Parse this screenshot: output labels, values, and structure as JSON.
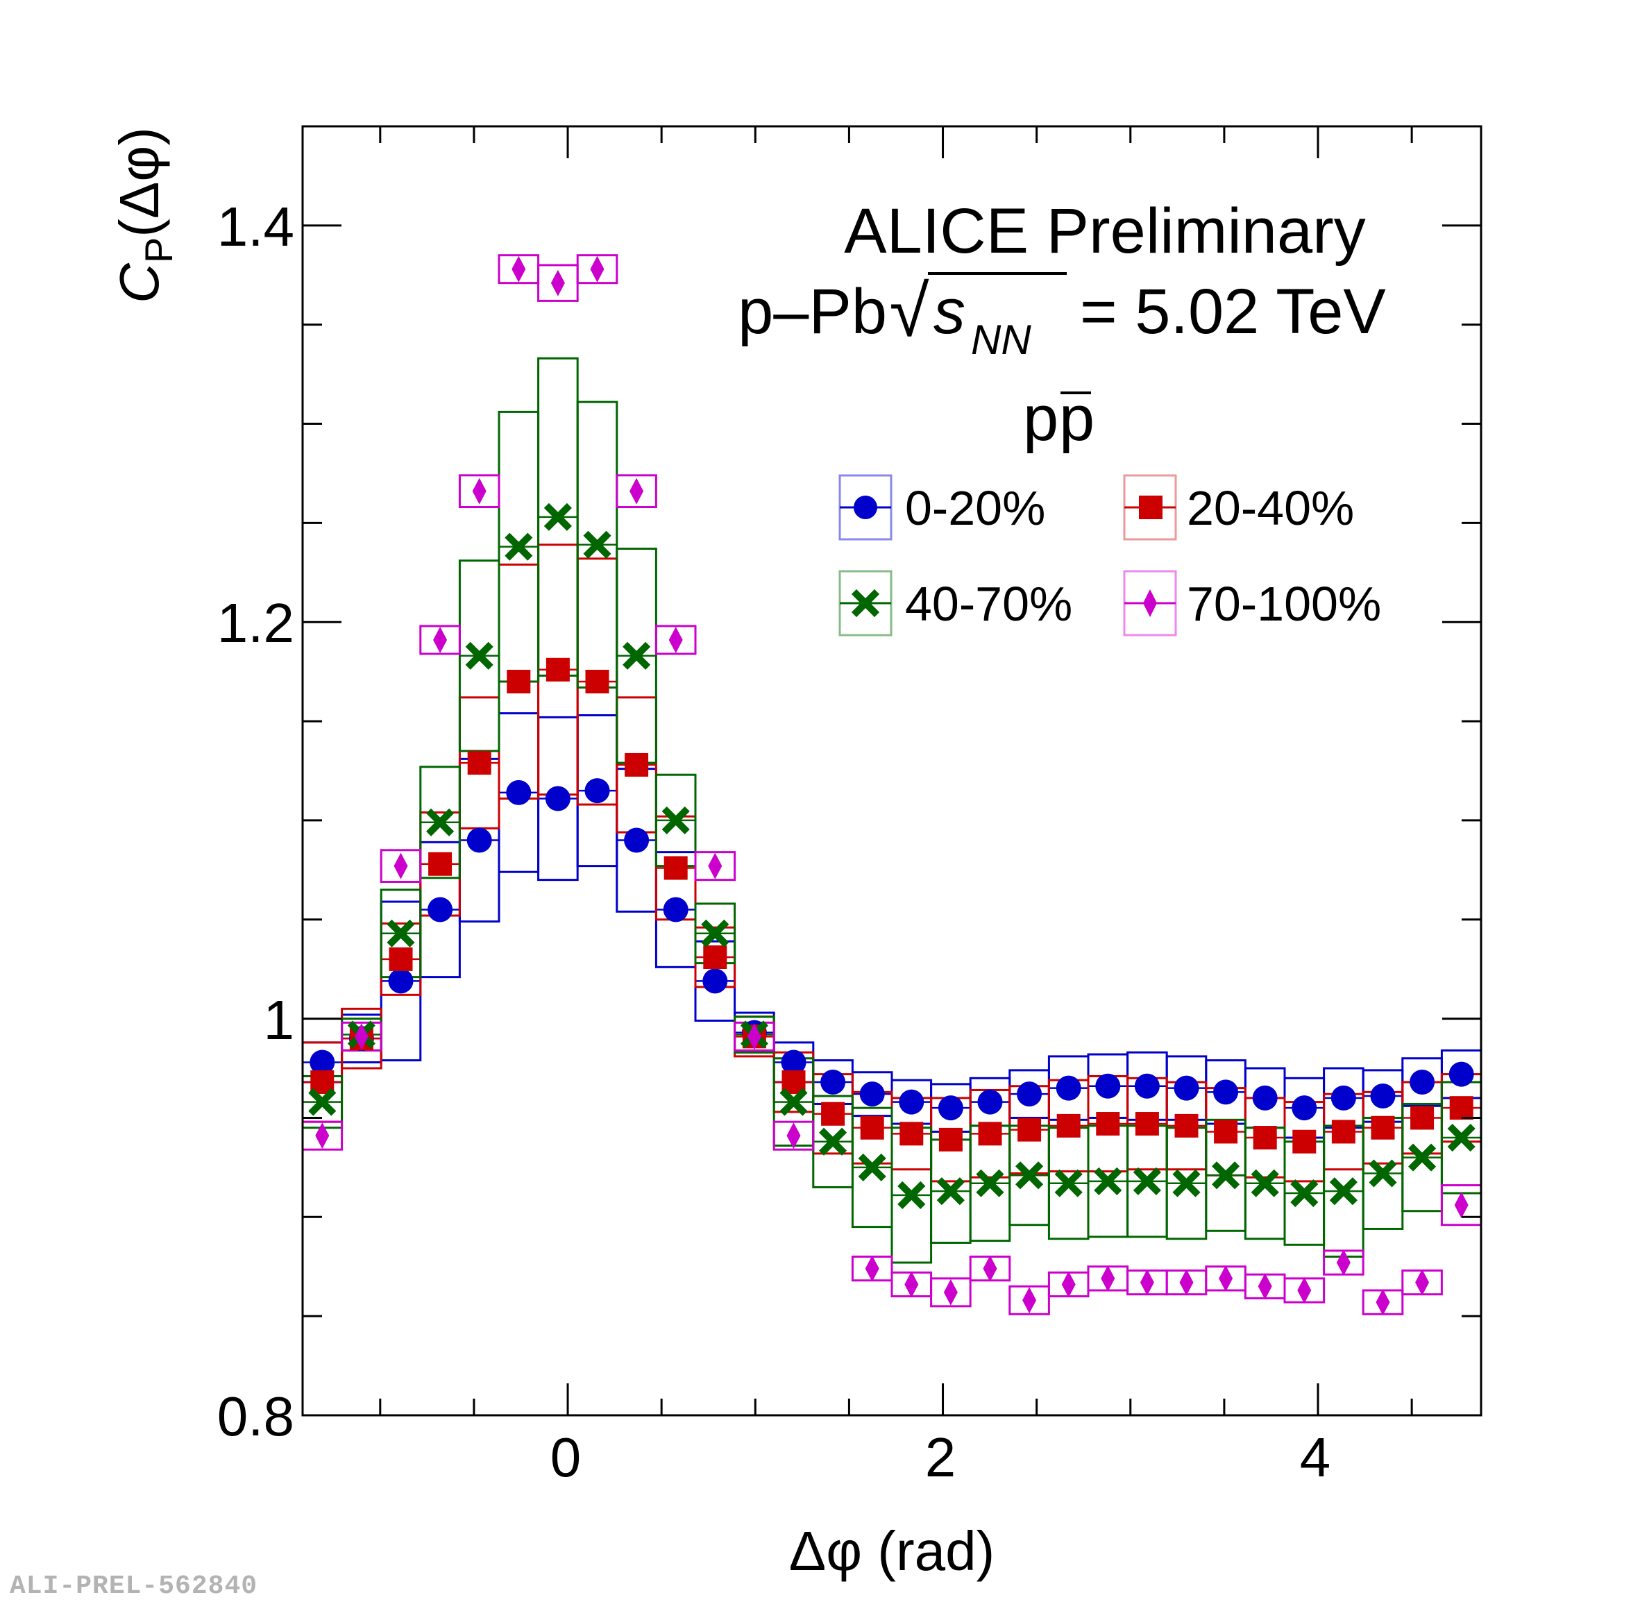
{
  "chart_data": {
    "type": "scatter",
    "title": "ALICE Preliminary",
    "subtitle": "p–Pb √sNN = 5.02 TeV",
    "collision_label": {
      "system": "p–Pb",
      "root_symbol": "√",
      "s_symbol": "s",
      "s_subscript": "NN",
      "energy": "= 5.02 TeV"
    },
    "particle_pair": {
      "main": "p",
      "bar": "p"
    },
    "xlabel": "Δφ (rad)",
    "ylabel": {
      "main": "C",
      "subscript": "P",
      "rest": "(Δφ)"
    },
    "xlim": [
      -1.4137,
      4.8695
    ],
    "ylim": [
      0.8,
      1.45
    ],
    "xticks": [
      0,
      2,
      4
    ],
    "xtick_labels": [
      "0",
      "2",
      "4"
    ],
    "yticks": [
      0.8,
      1.0,
      1.2,
      1.4
    ],
    "ytick_labels": [
      "0.8",
      "1",
      "1.2",
      "1.4"
    ],
    "bin_width": 0.2094,
    "x": [
      -1.309,
      -1.0996,
      -0.8901,
      -0.6807,
      -0.4712,
      -0.2618,
      -0.0524,
      0.1571,
      0.3665,
      0.576,
      0.7854,
      0.9948,
      1.2043,
      1.4137,
      1.6232,
      1.8326,
      2.042,
      2.2515,
      2.4609,
      2.6704,
      2.8798,
      3.0892,
      3.2987,
      3.5081,
      3.7176,
      3.927,
      4.1364,
      4.3459,
      4.5553,
      4.7648
    ],
    "series": [
      {
        "name": "0-20%",
        "color": "#0000cc",
        "marker": "circle",
        "values": [
          0.978,
          0.99,
          1.019,
          1.055,
          1.09,
          1.114,
          1.111,
          1.115,
          1.09,
          1.055,
          1.019,
          0.993,
          0.978,
          0.968,
          0.962,
          0.958,
          0.955,
          0.958,
          0.962,
          0.965,
          0.966,
          0.966,
          0.965,
          0.963,
          0.96,
          0.955,
          0.96,
          0.961,
          0.968,
          0.972
        ],
        "syst": [
          0.01,
          0.012,
          0.04,
          0.034,
          0.041,
          0.04,
          0.041,
          0.038,
          0.036,
          0.029,
          0.02,
          0.01,
          0.01,
          0.011,
          0.011,
          0.011,
          0.012,
          0.012,
          0.012,
          0.016,
          0.016,
          0.017,
          0.016,
          0.016,
          0.015,
          0.015,
          0.015,
          0.013,
          0.012,
          0.012
        ]
      },
      {
        "name": "20-40%",
        "color": "#cc0000",
        "marker": "square",
        "values": [
          0.968,
          0.99,
          1.03,
          1.078,
          1.129,
          1.17,
          1.176,
          1.17,
          1.128,
          1.076,
          1.031,
          0.991,
          0.968,
          0.952,
          0.945,
          0.942,
          0.939,
          0.942,
          0.944,
          0.946,
          0.947,
          0.947,
          0.946,
          0.943,
          0.94,
          0.938,
          0.943,
          0.945,
          0.95,
          0.955
        ],
        "syst": [
          0.02,
          0.015,
          0.018,
          0.026,
          0.033,
          0.059,
          0.063,
          0.062,
          0.034,
          0.026,
          0.015,
          0.01,
          0.015,
          0.02,
          0.018,
          0.018,
          0.021,
          0.022,
          0.022,
          0.023,
          0.024,
          0.023,
          0.022,
          0.022,
          0.02,
          0.02,
          0.019,
          0.018,
          0.018,
          0.017
        ]
      },
      {
        "name": "40-70%",
        "color": "#006600",
        "marker": "cross",
        "values": [
          0.958,
          0.992,
          1.043,
          1.099,
          1.183,
          1.238,
          1.253,
          1.239,
          1.183,
          1.1,
          1.043,
          0.992,
          0.958,
          0.938,
          0.925,
          0.911,
          0.913,
          0.917,
          0.921,
          0.917,
          0.918,
          0.918,
          0.917,
          0.921,
          0.917,
          0.912,
          0.913,
          0.922,
          0.93,
          0.94
        ],
        "syst": [
          0.013,
          0.008,
          0.022,
          0.028,
          0.048,
          0.068,
          0.08,
          0.072,
          0.054,
          0.023,
          0.015,
          0.009,
          0.022,
          0.023,
          0.03,
          0.034,
          0.026,
          0.029,
          0.025,
          0.028,
          0.028,
          0.028,
          0.028,
          0.028,
          0.028,
          0.026,
          0.033,
          0.028,
          0.027,
          0.028
        ]
      },
      {
        "name": "70-100%",
        "color": "#cc00cc",
        "marker": "diamond",
        "values": [
          0.941,
          0.991,
          1.077,
          1.191,
          1.266,
          1.378,
          1.371,
          1.378,
          1.266,
          1.191,
          1.077,
          0.991,
          0.941,
          null,
          0.874,
          0.866,
          0.862,
          0.874,
          0.858,
          0.866,
          0.869,
          0.867,
          0.867,
          0.869,
          0.865,
          0.863,
          0.877,
          0.857,
          0.867,
          0.906
        ],
        "syst": [
          0.007,
          0.007,
          0.008,
          0.007,
          0.008,
          0.007,
          0.009,
          0.007,
          0.008,
          0.007,
          0.007,
          0.007,
          0.007,
          0.006,
          0.006,
          0.006,
          0.007,
          0.006,
          0.007,
          0.006,
          0.006,
          0.006,
          0.006,
          0.006,
          0.006,
          0.006,
          0.006,
          0.006,
          0.006,
          0.01
        ]
      }
    ],
    "legend": {
      "position": "top-right",
      "columns": 2
    }
  },
  "footer": {
    "figure_id": "ALI-PREL-562840"
  }
}
